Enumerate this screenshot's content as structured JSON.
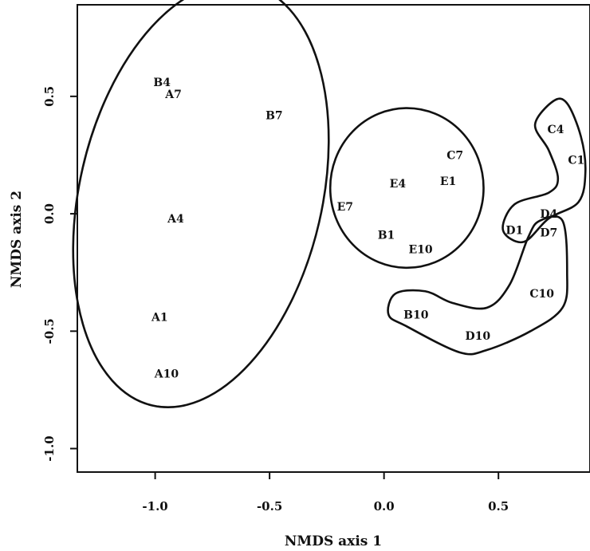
{
  "chart_data": {
    "type": "scatter",
    "xlabel": "NMDS axis 1",
    "ylabel": "NMDS axis 2",
    "xlim": [
      -1.34,
      0.9
    ],
    "ylim": [
      -1.1,
      0.89
    ],
    "xticks": [
      -1.0,
      -0.5,
      0.0,
      0.5
    ],
    "xtick_labels": [
      "-1.0",
      "-0.5",
      "0.0",
      "0.5"
    ],
    "yticks": [
      -1.0,
      -0.5,
      0.0,
      0.5
    ],
    "ytick_labels": [
      "-1.0",
      "-0.5",
      "0.0",
      "0.5"
    ],
    "grid": false,
    "points": [
      {
        "label": "B4",
        "x": -0.97,
        "y": 0.56
      },
      {
        "label": "A7",
        "x": -0.92,
        "y": 0.51
      },
      {
        "label": "B7",
        "x": -0.48,
        "y": 0.42
      },
      {
        "label": "A4",
        "x": -0.91,
        "y": -0.02
      },
      {
        "label": "A1",
        "x": -0.98,
        "y": -0.44
      },
      {
        "label": "A10",
        "x": -0.95,
        "y": -0.68
      },
      {
        "label": "C7",
        "x": 0.31,
        "y": 0.25
      },
      {
        "label": "E4",
        "x": 0.06,
        "y": 0.13
      },
      {
        "label": "E1",
        "x": 0.28,
        "y": 0.14
      },
      {
        "label": "E7",
        "x": -0.17,
        "y": 0.03
      },
      {
        "label": "B1",
        "x": 0.01,
        "y": -0.09
      },
      {
        "label": "E10",
        "x": 0.16,
        "y": -0.15
      },
      {
        "label": "C4",
        "x": 0.75,
        "y": 0.36
      },
      {
        "label": "C1",
        "x": 0.84,
        "y": 0.23
      },
      {
        "label": "D4",
        "x": 0.72,
        "y": 0.0
      },
      {
        "label": "D1",
        "x": 0.57,
        "y": -0.07
      },
      {
        "label": "D7",
        "x": 0.72,
        "y": -0.08
      },
      {
        "label": "C10",
        "x": 0.69,
        "y": -0.34
      },
      {
        "label": "B10",
        "x": 0.14,
        "y": -0.43
      },
      {
        "label": "D10",
        "x": 0.41,
        "y": -0.52
      }
    ],
    "groups": [
      {
        "shape": "ellipse",
        "cx": -0.8,
        "cy": 0.08,
        "rx": 0.53,
        "ry": 0.92,
        "rotation_deg": 13
      },
      {
        "shape": "ellipse",
        "cx": 0.1,
        "cy": 0.11,
        "rx": 0.335,
        "ry": 0.34,
        "rotation_deg": 0
      },
      {
        "shape": "polygon",
        "vertices": [
          [
            0.66,
            0.38
          ],
          [
            0.74,
            0.48
          ],
          [
            0.8,
            0.47
          ],
          [
            0.86,
            0.33
          ],
          [
            0.88,
            0.18
          ],
          [
            0.85,
            0.05
          ],
          [
            0.72,
            -0.02
          ],
          [
            0.61,
            -0.12
          ],
          [
            0.52,
            -0.07
          ],
          [
            0.57,
            0.04
          ],
          [
            0.72,
            0.09
          ],
          [
            0.76,
            0.15
          ],
          [
            0.72,
            0.27
          ]
        ]
      },
      {
        "shape": "polygon",
        "vertices": [
          [
            0.68,
            -0.03
          ],
          [
            0.78,
            -0.03
          ],
          [
            0.8,
            -0.25
          ],
          [
            0.78,
            -0.4
          ],
          [
            0.64,
            -0.5
          ],
          [
            0.45,
            -0.58
          ],
          [
            0.33,
            -0.59
          ],
          [
            0.1,
            -0.48
          ],
          [
            0.02,
            -0.43
          ],
          [
            0.05,
            -0.34
          ],
          [
            0.18,
            -0.33
          ],
          [
            0.3,
            -0.38
          ],
          [
            0.45,
            -0.4
          ],
          [
            0.55,
            -0.3
          ],
          [
            0.63,
            -0.1
          ]
        ]
      }
    ]
  }
}
